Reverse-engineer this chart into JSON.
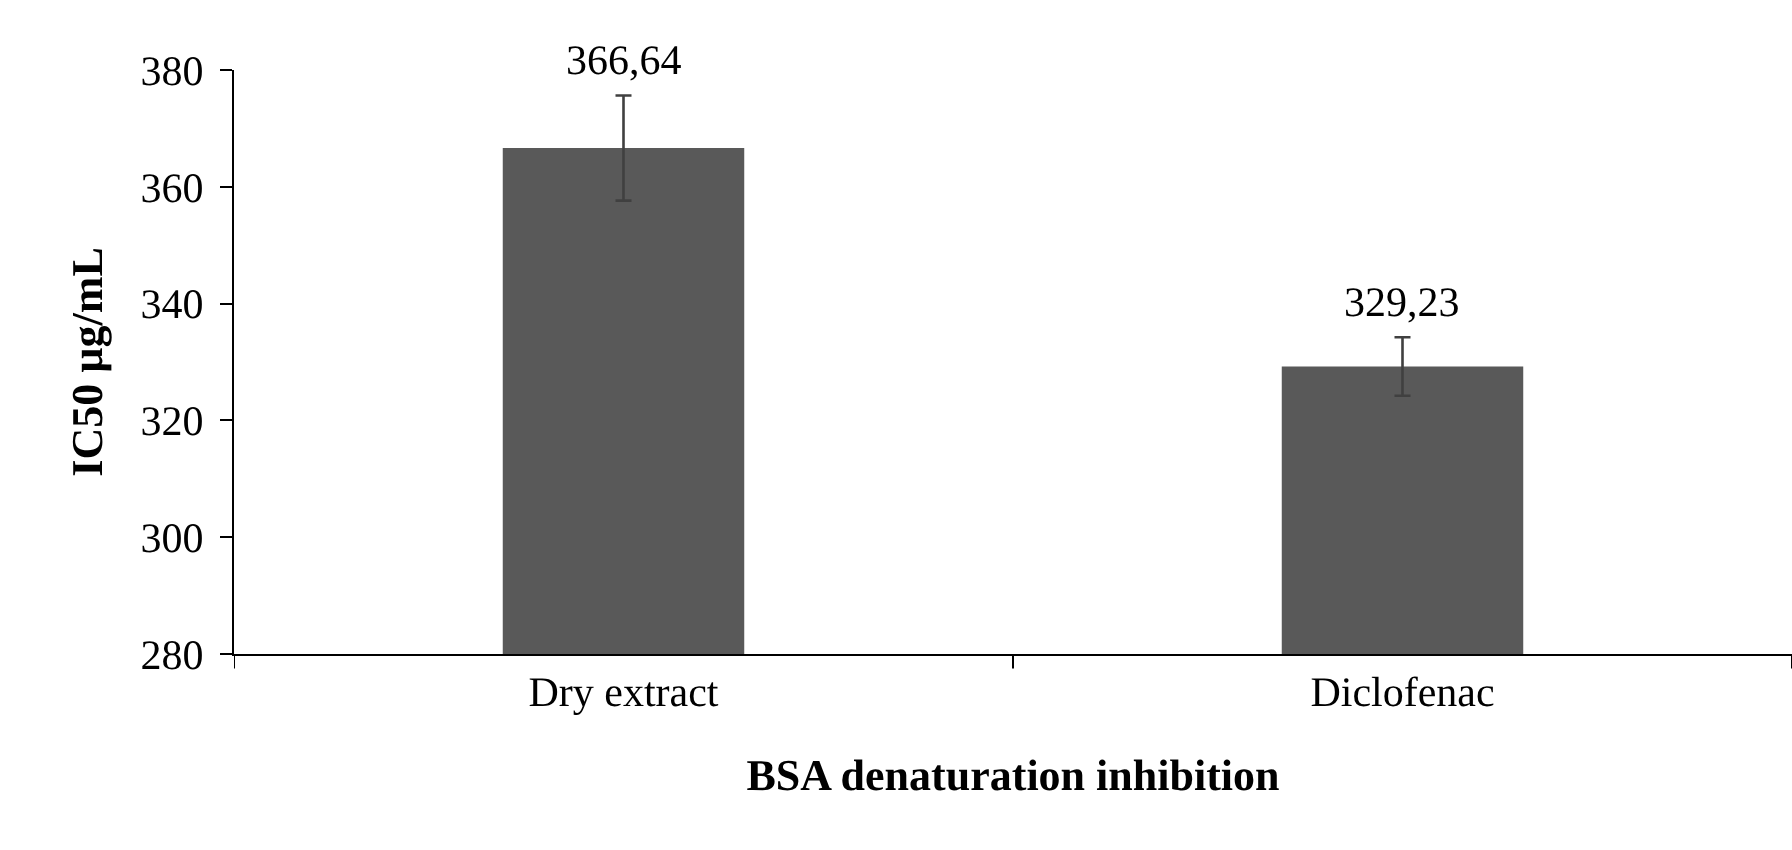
{
  "chart_data": {
    "type": "bar",
    "xlabel": "BSA denaturation inhibition",
    "ylabel": "IC50 µg/mL",
    "categories": [
      "Dry extract",
      "Diclofenac"
    ],
    "values": [
      366.64,
      329.23
    ],
    "value_labels": [
      "366,64",
      "329,23"
    ],
    "errors": [
      9,
      5
    ],
    "color": "#595959",
    "ylim": [
      280,
      380
    ],
    "yticks": [
      280,
      300,
      320,
      340,
      360,
      380
    ]
  }
}
